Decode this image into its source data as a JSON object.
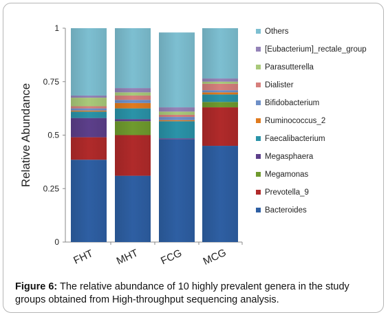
{
  "chart_data": {
    "type": "bar",
    "stacked": true,
    "ylabel": "Relative Abundance",
    "xlabel": "",
    "ylim": [
      0,
      1
    ],
    "yticks": [
      "0",
      "0.25",
      "0.5",
      "0.75",
      "1"
    ],
    "categories": [
      "FHT",
      "MHT",
      "FCG",
      "MCG"
    ],
    "legend_position": "right",
    "series": [
      {
        "name": "Bacteroides",
        "color": "#2e5fa3",
        "values": [
          0.385,
          0.31,
          0.48,
          0.45
        ]
      },
      {
        "name": "Prevotella_9",
        "color": "#b02a2a",
        "values": [
          0.105,
          0.19,
          0.0,
          0.18
        ]
      },
      {
        "name": "Megamonas",
        "color": "#6f9a2e",
        "values": [
          0.0,
          0.065,
          0.0,
          0.025
        ]
      },
      {
        "name": "Megasphaera",
        "color": "#5c3f8a",
        "values": [
          0.09,
          0.01,
          0.005,
          0.0
        ]
      },
      {
        "name": "Faecalibacterium",
        "color": "#2a93a8",
        "values": [
          0.03,
          0.05,
          0.08,
          0.035
        ]
      },
      {
        "name": "Ruminococcus_2",
        "color": "#e07b1f",
        "values": [
          0.005,
          0.025,
          0.005,
          0.01
        ]
      },
      {
        "name": "Bifidobacterium",
        "color": "#6e8fc7",
        "values": [
          0.01,
          0.015,
          0.015,
          0.01
        ]
      },
      {
        "name": "Dialister",
        "color": "#d67f7c",
        "values": [
          0.01,
          0.02,
          0.01,
          0.03
        ]
      },
      {
        "name": "Parasutterella",
        "color": "#a9c97a",
        "values": [
          0.04,
          0.015,
          0.015,
          0.01
        ]
      },
      {
        "name": "[Eubacterium]_rectale_group",
        "color": "#9483b8",
        "values": [
          0.01,
          0.02,
          0.02,
          0.015
        ]
      },
      {
        "name": "Others",
        "color": "#7dbfd1",
        "values": [
          0.315,
          0.28,
          0.35,
          0.235
        ]
      }
    ]
  },
  "caption": {
    "label": "Figure 6:",
    "text": " The relative abundance of 10 highly prevalent genera in the study groups obtained from High-throughput sequencing analysis."
  }
}
